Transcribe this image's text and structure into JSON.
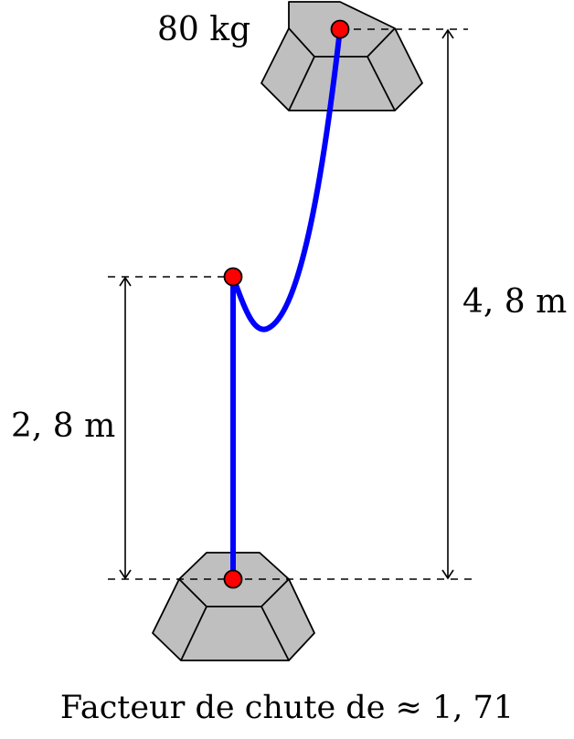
{
  "labels": {
    "mass": "80 kg",
    "height_total": "4, 8 m",
    "height_partial": "2, 8 m",
    "caption": "Facteur de chute de ≈ 1, 71"
  },
  "colors": {
    "rope": "#0000ff",
    "anchor_points": "#ff0000",
    "blocks": "#bfbfbf"
  }
}
